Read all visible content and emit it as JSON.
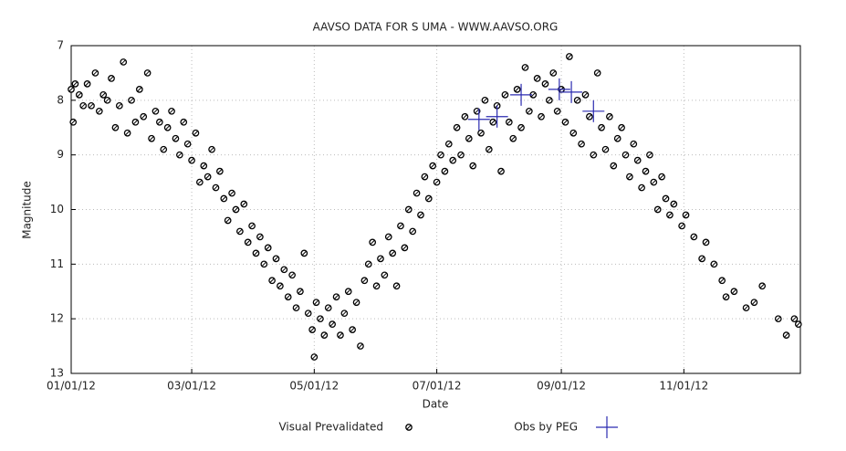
{
  "chart_data": {
    "type": "scatter",
    "title": "AAVSO DATA FOR S UMA - WWW.AAVSO.ORG",
    "x_label": "Date",
    "y_label": "Magnitude",
    "xlim": [
      0,
      363
    ],
    "ylim": [
      13,
      7
    ],
    "xticks": [
      {
        "value": 0,
        "label": "01/01/12"
      },
      {
        "value": 60,
        "label": "03/01/12"
      },
      {
        "value": 121,
        "label": "05/01/12"
      },
      {
        "value": 182,
        "label": "07/01/12"
      },
      {
        "value": 244,
        "label": "09/01/12"
      },
      {
        "value": 305,
        "label": "11/01/12"
      }
    ],
    "yticks": [
      7,
      8,
      9,
      10,
      11,
      12,
      13
    ],
    "grid": true,
    "series": [
      {
        "name": "Visual Prevalidated",
        "color": "#000000",
        "marker": "circle",
        "x": [
          0,
          1,
          2,
          4,
          6,
          8,
          10,
          12,
          14,
          16,
          18,
          20,
          22,
          24,
          26,
          28,
          30,
          32,
          34,
          36,
          38,
          40,
          42,
          44,
          46,
          48,
          50,
          52,
          54,
          56,
          58,
          60,
          62,
          64,
          66,
          68,
          70,
          72,
          74,
          76,
          78,
          80,
          82,
          84,
          86,
          88,
          90,
          92,
          94,
          96,
          98,
          100,
          102,
          104,
          106,
          108,
          110,
          112,
          114,
          116,
          118,
          120,
          121,
          122,
          124,
          126,
          128,
          130,
          132,
          134,
          136,
          138,
          140,
          142,
          144,
          146,
          148,
          150,
          152,
          154,
          156,
          158,
          160,
          162,
          164,
          166,
          168,
          170,
          172,
          174,
          176,
          178,
          180,
          182,
          184,
          186,
          188,
          190,
          192,
          194,
          196,
          198,
          200,
          202,
          204,
          206,
          208,
          210,
          212,
          214,
          216,
          218,
          220,
          222,
          224,
          226,
          228,
          230,
          232,
          234,
          236,
          238,
          240,
          242,
          244,
          246,
          248,
          250,
          252,
          254,
          256,
          258,
          260,
          262,
          264,
          266,
          268,
          270,
          272,
          274,
          276,
          278,
          280,
          282,
          284,
          286,
          288,
          290,
          292,
          294,
          296,
          298,
          300,
          304,
          306,
          310,
          314,
          316,
          320,
          324,
          326,
          330,
          336,
          340,
          344,
          352,
          356,
          360,
          362
        ],
        "values": [
          7.8,
          8.4,
          7.7,
          7.9,
          8.1,
          7.7,
          8.1,
          7.5,
          8.2,
          7.9,
          8.0,
          7.6,
          8.5,
          8.1,
          7.3,
          8.6,
          8.0,
          8.4,
          7.8,
          8.3,
          7.5,
          8.7,
          8.2,
          8.4,
          8.9,
          8.5,
          8.2,
          8.7,
          9.0,
          8.4,
          8.8,
          9.1,
          8.6,
          9.5,
          9.2,
          9.4,
          8.9,
          9.6,
          9.3,
          9.8,
          10.2,
          9.7,
          10.0,
          10.4,
          9.9,
          10.6,
          10.3,
          10.8,
          10.5,
          11.0,
          10.7,
          11.3,
          10.9,
          11.4,
          11.1,
          11.6,
          11.2,
          11.8,
          11.5,
          10.8,
          11.9,
          12.2,
          12.7,
          11.7,
          12.0,
          12.3,
          11.8,
          12.1,
          11.6,
          12.3,
          11.9,
          11.5,
          12.2,
          11.7,
          12.5,
          11.3,
          11.0,
          10.6,
          11.4,
          10.9,
          11.2,
          10.5,
          10.8,
          11.4,
          10.3,
          10.7,
          10.0,
          10.4,
          9.7,
          10.1,
          9.4,
          9.8,
          9.2,
          9.5,
          9.0,
          9.3,
          8.8,
          9.1,
          8.5,
          9.0,
          8.3,
          8.7,
          9.2,
          8.2,
          8.6,
          8.0,
          8.9,
          8.4,
          8.1,
          9.3,
          7.9,
          8.4,
          8.7,
          7.8,
          8.5,
          7.4,
          8.2,
          7.9,
          7.6,
          8.3,
          7.7,
          8.0,
          7.5,
          8.2,
          7.8,
          8.4,
          7.2,
          8.6,
          8.0,
          8.8,
          7.9,
          8.3,
          9.0,
          7.5,
          8.5,
          8.9,
          8.3,
          9.2,
          8.7,
          8.5,
          9.0,
          9.4,
          8.8,
          9.1,
          9.6,
          9.3,
          9.0,
          9.5,
          10.0,
          9.4,
          9.8,
          10.1,
          9.9,
          10.3,
          10.1,
          10.5,
          10.9,
          10.6,
          11.0,
          11.3,
          11.6,
          11.5,
          11.8,
          11.7,
          11.4,
          12.0,
          12.3,
          12.0,
          12.1
        ]
      },
      {
        "name": "Obs by PEG",
        "color": "#2b2bb0",
        "marker": "plus",
        "x": [
          203,
          212,
          224,
          243,
          249,
          260
        ],
        "values": [
          8.35,
          8.3,
          7.9,
          7.8,
          7.85,
          8.2
        ]
      }
    ]
  }
}
